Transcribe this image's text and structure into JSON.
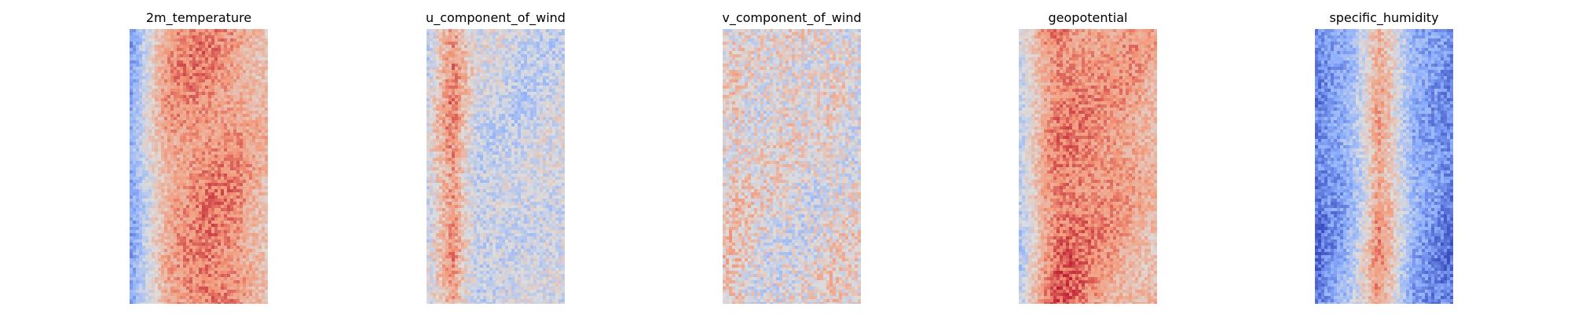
{
  "chart_data": [
    {
      "type": "heatmap",
      "title": "2m_temperature",
      "colormap": "coolwarm",
      "grid": false,
      "axes_visible": false,
      "pattern": "vertical band: warm red center, light salmon right edge, light blue speckle on left edge",
      "column_profile": [
        -0.55,
        -0.2,
        0.15,
        0.4,
        0.5,
        0.55,
        0.58,
        0.55,
        0.5,
        0.42,
        0.3,
        0.22
      ],
      "noise": 0.2,
      "seed": 11
    },
    {
      "type": "heatmap",
      "title": "u_component_of_wind",
      "colormap": "coolwarm",
      "grid": false,
      "axes_visible": false,
      "pattern": "mostly neutral gray field with scattered blue patches and a red streak in the left third",
      "column_profile": [
        -0.1,
        0.2,
        0.5,
        0.15,
        -0.1,
        -0.1,
        -0.08,
        -0.1,
        -0.12,
        -0.1,
        -0.12,
        -0.1
      ],
      "noise": 0.25,
      "seed": 23
    },
    {
      "type": "heatmap",
      "title": "v_component_of_wind",
      "colormap": "coolwarm",
      "grid": false,
      "axes_visible": false,
      "pattern": "neutral gray field with mixed red and blue eddies",
      "column_profile": [
        0.1,
        0.15,
        0.05,
        0.0,
        0.0,
        0.05,
        0.0,
        0.0,
        0.05,
        0.1,
        0.05,
        0.0
      ],
      "noise": 0.32,
      "seed": 37
    },
    {
      "type": "heatmap",
      "title": "geopotential",
      "colormap": "coolwarm",
      "grid": false,
      "axes_visible": false,
      "pattern": "warm orange-red field, deeper red center-left, blue speckle along left edge",
      "column_profile": [
        -0.2,
        0.15,
        0.45,
        0.62,
        0.6,
        0.55,
        0.5,
        0.45,
        0.42,
        0.4,
        0.35,
        0.32
      ],
      "noise": 0.2,
      "seed": 41
    },
    {
      "type": "heatmap",
      "title": "specific_humidity",
      "colormap": "coolwarm",
      "grid": false,
      "axes_visible": false,
      "pattern": "cool blue field with a narrow warm red band near the center",
      "column_profile": [
        -0.75,
        -0.6,
        -0.5,
        -0.3,
        0.05,
        0.45,
        0.2,
        -0.2,
        -0.5,
        -0.6,
        -0.65,
        -0.72
      ],
      "noise": 0.22,
      "seed": 53
    }
  ]
}
